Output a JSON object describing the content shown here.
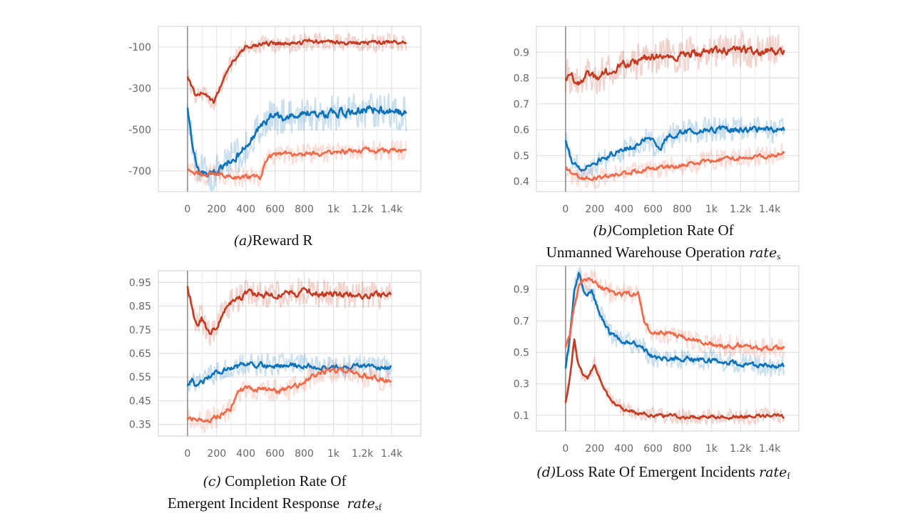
{
  "colors": {
    "dark_red": "#c23b22",
    "orange": "#ee6a4a",
    "blue": "#0d72b8"
  },
  "series_order": [
    {
      "name": "dark_red",
      "color_key": "dark_red"
    },
    {
      "name": "blue",
      "color_key": "blue"
    },
    {
      "name": "orange",
      "color_key": "orange"
    }
  ],
  "captions": {
    "a": {
      "label": "(a)",
      "text": "Reward R"
    },
    "b": {
      "label": "(b)",
      "line1": "Completion Rate Of",
      "line2": "Unmanned Warehouse Operation ",
      "var": "rate",
      "sub": "s"
    },
    "c": {
      "label": "(c)",
      "line1": " Completion Rate Of",
      "line2": "Emergent Incident Response  ",
      "var": "rate",
      "sub": "sf"
    },
    "d": {
      "label": "(d)",
      "line1": "Loss Rate Of Emergent Incidents ",
      "var": "rate",
      "sub": "f"
    }
  },
  "chart_data": [
    {
      "id": "a",
      "type": "line",
      "title": "Reward R",
      "xlim": [
        -200,
        1600
      ],
      "ylim": [
        -800,
        0
      ],
      "x_ticks": [
        0,
        200,
        400,
        600,
        800,
        1000,
        1200,
        1400
      ],
      "x_tick_labels": [
        "0",
        "200",
        "400",
        "600",
        "800",
        "1k",
        "1.2k",
        "1.4k"
      ],
      "y_ticks": [
        -100,
        -300,
        -500,
        -700
      ],
      "y_tick_labels": [
        "-100",
        "-300",
        "-500",
        "-700"
      ],
      "grid": true,
      "series": [
        {
          "name": "dark_red",
          "x": [
            0,
            50,
            100,
            150,
            180,
            250,
            300,
            400,
            500,
            700,
            900,
            1100,
            1300,
            1500
          ],
          "y": [
            -240,
            -330,
            -320,
            -350,
            -370,
            -250,
            -180,
            -100,
            -85,
            -80,
            -75,
            -80,
            -80,
            -75
          ],
          "noise": 45
        },
        {
          "name": "blue",
          "x": [
            0,
            30,
            80,
            150,
            250,
            350,
            450,
            550,
            650,
            800,
            900,
            1100,
            1300,
            1450,
            1500
          ],
          "y": [
            -400,
            -550,
            -700,
            -720,
            -680,
            -620,
            -540,
            -450,
            -440,
            -420,
            -430,
            -410,
            -400,
            -420,
            -420
          ],
          "noise": 90
        },
        {
          "name": "orange",
          "x": [
            0,
            50,
            100,
            200,
            300,
            400,
            500,
            540,
            600,
            700,
            800,
            1000,
            1200,
            1400,
            1500
          ],
          "y": [
            -690,
            -710,
            -720,
            -710,
            -730,
            -730,
            -730,
            -650,
            -620,
            -620,
            -620,
            -610,
            -600,
            -600,
            -600
          ],
          "noise": 50
        }
      ]
    },
    {
      "id": "b",
      "type": "line",
      "title": "Completion Rate Of Unmanned Warehouse Operation rate_s",
      "xlim": [
        -200,
        1600
      ],
      "ylim": [
        0.36,
        1.0
      ],
      "x_ticks": [
        0,
        200,
        400,
        600,
        800,
        1000,
        1200,
        1400
      ],
      "x_tick_labels": [
        "0",
        "200",
        "400",
        "600",
        "800",
        "1k",
        "1.2k",
        "1.4k"
      ],
      "y_ticks": [
        0.9,
        0.8,
        0.7,
        0.6,
        0.5,
        0.4
      ],
      "y_tick_labels": [
        "0.9",
        "0.8",
        "0.7",
        "0.6",
        "0.5",
        "0.4"
      ],
      "grid": true,
      "series": [
        {
          "name": "dark_red",
          "x": [
            0,
            50,
            100,
            150,
            200,
            300,
            400,
            600,
            800,
            1000,
            1200,
            1300,
            1400,
            1500
          ],
          "y": [
            0.81,
            0.8,
            0.79,
            0.82,
            0.8,
            0.83,
            0.85,
            0.88,
            0.89,
            0.9,
            0.91,
            0.9,
            0.9,
            0.9
          ],
          "noise": 0.07
        },
        {
          "name": "blue",
          "x": [
            0,
            50,
            100,
            200,
            300,
            400,
            500,
            550,
            650,
            700,
            800,
            1000,
            1200,
            1400,
            1500
          ],
          "y": [
            0.56,
            0.46,
            0.45,
            0.47,
            0.5,
            0.52,
            0.54,
            0.57,
            0.53,
            0.57,
            0.59,
            0.6,
            0.6,
            0.6,
            0.6
          ],
          "noise": 0.05
        },
        {
          "name": "orange",
          "x": [
            0,
            50,
            100,
            200,
            300,
            400,
            500,
            600,
            800,
            1000,
            1200,
            1400,
            1500
          ],
          "y": [
            0.45,
            0.43,
            0.41,
            0.41,
            0.42,
            0.43,
            0.44,
            0.45,
            0.46,
            0.48,
            0.49,
            0.5,
            0.51
          ],
          "noise": 0.04
        }
      ]
    },
    {
      "id": "c",
      "type": "line",
      "title": "Completion Rate Of Emergent Incident Response rate_sf",
      "xlim": [
        -200,
        1600
      ],
      "ylim": [
        0.3,
        1.0
      ],
      "x_ticks": [
        0,
        200,
        400,
        600,
        800,
        1000,
        1200,
        1400
      ],
      "x_tick_labels": [
        "0",
        "200",
        "400",
        "600",
        "800",
        "1k",
        "1.2k",
        "1.4k"
      ],
      "y_ticks": [
        0.95,
        0.85,
        0.75,
        0.65,
        0.55,
        0.45,
        0.35
      ],
      "y_tick_labels": [
        "0.95",
        "0.85",
        "0.75",
        "0.65",
        "0.55",
        "0.45",
        "0.35"
      ],
      "grid": true,
      "series": [
        {
          "name": "dark_red",
          "x": [
            0,
            30,
            60,
            100,
            150,
            200,
            250,
            300,
            400,
            600,
            800,
            1000,
            1200,
            1400
          ],
          "y": [
            0.93,
            0.85,
            0.77,
            0.8,
            0.73,
            0.76,
            0.83,
            0.87,
            0.9,
            0.9,
            0.91,
            0.9,
            0.9,
            0.9
          ],
          "noise": 0.06
        },
        {
          "name": "blue",
          "x": [
            0,
            30,
            60,
            100,
            200,
            300,
            400,
            600,
            800,
            1000,
            1200,
            1400
          ],
          "y": [
            0.52,
            0.54,
            0.51,
            0.53,
            0.57,
            0.59,
            0.6,
            0.6,
            0.6,
            0.59,
            0.6,
            0.59
          ],
          "noise": 0.05
        },
        {
          "name": "orange",
          "x": [
            0,
            50,
            100,
            150,
            200,
            300,
            350,
            400,
            500,
            600,
            700,
            800,
            900,
            1000,
            1200,
            1400
          ],
          "y": [
            0.37,
            0.37,
            0.36,
            0.37,
            0.38,
            0.42,
            0.49,
            0.5,
            0.5,
            0.49,
            0.5,
            0.53,
            0.57,
            0.58,
            0.56,
            0.53
          ],
          "noise": 0.05
        }
      ]
    },
    {
      "id": "d",
      "type": "line",
      "title": "Loss Rate Of Emergent Incidents rate_f",
      "xlim": [
        -200,
        1600
      ],
      "ylim": [
        0.0,
        1.05
      ],
      "x_ticks": [
        0,
        200,
        400,
        600,
        800,
        1000,
        1200,
        1400
      ],
      "x_tick_labels": [
        "0",
        "200",
        "400",
        "600",
        "800",
        "1k",
        "1.2k",
        "1.4k"
      ],
      "y_ticks": [
        0.9,
        0.7,
        0.5,
        0.3,
        0.1
      ],
      "y_tick_labels": [
        "0.9",
        "0.7",
        "0.5",
        "0.3",
        "0.1"
      ],
      "grid": true,
      "series": [
        {
          "name": "dark_red",
          "x": [
            0,
            30,
            60,
            80,
            120,
            150,
            200,
            250,
            300,
            400,
            500,
            600,
            800,
            1000,
            1200,
            1400,
            1500
          ],
          "y": [
            0.18,
            0.35,
            0.58,
            0.45,
            0.36,
            0.33,
            0.42,
            0.3,
            0.2,
            0.14,
            0.11,
            0.1,
            0.09,
            0.09,
            0.09,
            0.1,
            0.09
          ],
          "noise": 0.05
        },
        {
          "name": "blue",
          "x": [
            0,
            30,
            60,
            90,
            130,
            180,
            220,
            300,
            400,
            500,
            600,
            800,
            1000,
            1200,
            1400,
            1500
          ],
          "y": [
            0.39,
            0.6,
            0.9,
            1.0,
            0.88,
            0.88,
            0.78,
            0.62,
            0.57,
            0.55,
            0.47,
            0.46,
            0.45,
            0.43,
            0.41,
            0.41
          ],
          "noise": 0.07
        },
        {
          "name": "orange",
          "x": [
            0,
            30,
            60,
            100,
            150,
            200,
            300,
            400,
            500,
            540,
            580,
            700,
            800,
            1000,
            1200,
            1400,
            1500
          ],
          "y": [
            0.54,
            0.6,
            0.8,
            0.95,
            0.96,
            0.95,
            0.88,
            0.87,
            0.87,
            0.7,
            0.64,
            0.62,
            0.6,
            0.55,
            0.54,
            0.52,
            0.54
          ],
          "noise": 0.07
        }
      ]
    }
  ]
}
